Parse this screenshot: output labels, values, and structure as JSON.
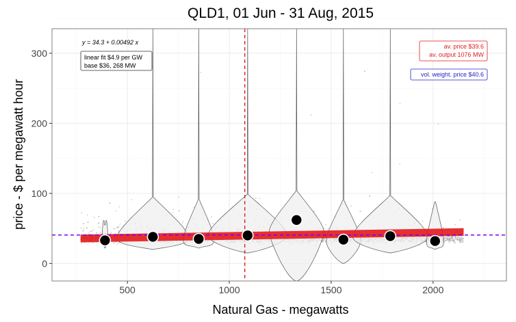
{
  "chart_data": {
    "type": "scatter",
    "title": "QLD1, 01 Jun - 31 Aug, 2015",
    "xlabel": "Natural Gas  - megawatts",
    "ylabel": "price - $ per megawatt hour",
    "xlim": [
      130,
      2360
    ],
    "ylim": [
      -25,
      335
    ],
    "x_ticks": [
      500,
      1000,
      1500,
      2000
    ],
    "y_ticks": [
      0,
      100,
      200,
      300
    ],
    "grid": true,
    "bin_means": [
      {
        "x": 390,
        "y": 33
      },
      {
        "x": 625,
        "y": 38
      },
      {
        "x": 850,
        "y": 35
      },
      {
        "x": 1090,
        "y": 40
      },
      {
        "x": 1330,
        "y": 62
      },
      {
        "x": 1560,
        "y": 34
      },
      {
        "x": 1790,
        "y": 39
      },
      {
        "x": 2010,
        "y": 32
      }
    ],
    "violins": [
      {
        "x": 390,
        "ymin": 22,
        "ymax": 55,
        "width": 8
      },
      {
        "x": 625,
        "ymin": 20,
        "ymax": 335,
        "width": 105,
        "bulge_y": 36
      },
      {
        "x": 850,
        "ymin": 22,
        "ymax": 335,
        "width": 45,
        "bulge_y": 33
      },
      {
        "x": 1090,
        "ymin": 15,
        "ymax": 335,
        "width": 115,
        "bulge_y": 40
      },
      {
        "x": 1330,
        "ymin": -25,
        "ymax": 335,
        "width": 80,
        "bulge_y": 45
      },
      {
        "x": 1560,
        "ymin": 0,
        "ymax": 335,
        "width": 50,
        "bulge_y": 32
      },
      {
        "x": 1790,
        "ymin": 15,
        "ymax": 335,
        "width": 110,
        "bulge_y": 38
      },
      {
        "x": 2010,
        "ymin": 20,
        "ymax": 88,
        "width": 25,
        "bulge_y": 30
      }
    ],
    "linear_fit": {
      "equation": "y = 34.3 + 0.00492 x",
      "intercept": 34.3,
      "slope": 0.00492,
      "x_range": [
        270,
        2150
      ],
      "lines": [
        "linear fit $4.9 per GW",
        "base $36, 268 MW"
      ]
    },
    "average_output_mw": 1076,
    "average_price": 39.6,
    "volume_weighted_price": 40.6,
    "annotation_red": [
      "av. price $39.6",
      "av. output 1076 MW"
    ],
    "annotation_blue": "vol. weight. price $40.6",
    "colors": {
      "fit": "#e41a1c",
      "av_output_line": "#e41a1c",
      "vw_price_line": "#7700ff",
      "points": "#a6a6a6",
      "means": "#000000",
      "violin_fill": "#efefef",
      "panel_border": "#7f7f7f",
      "grid": "#ebebeb"
    }
  }
}
